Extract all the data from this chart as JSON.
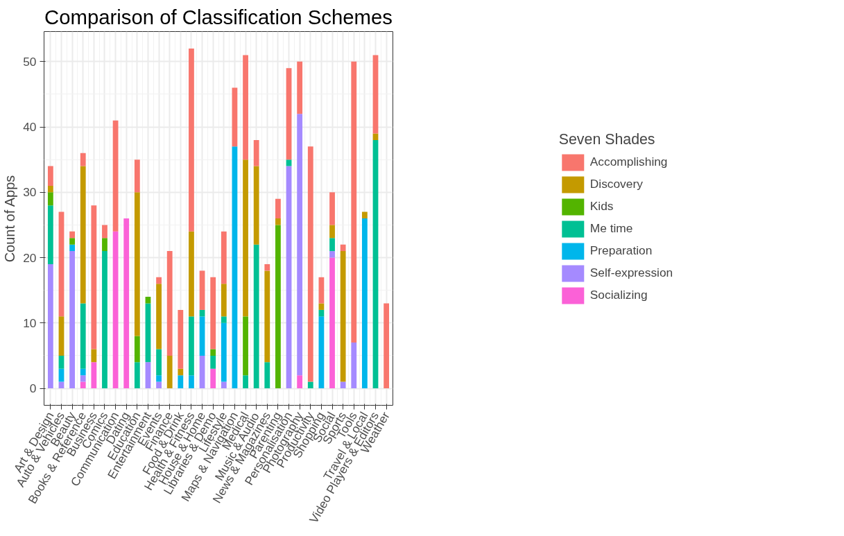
{
  "chart_data": {
    "type": "bar",
    "stacked": true,
    "title": "Comparison of Classification Schemes",
    "ylabel": "Count of Apps",
    "legend_title": "Seven Shades",
    "legend": "right",
    "grid": true,
    "categories": [
      "Art & Design",
      "Auto & Vehicles",
      "Beauty",
      "Books & Reference",
      "Business",
      "Comics",
      "Communication",
      "Dating",
      "Education",
      "Entertainment",
      "Events",
      "Finance",
      "Food & Drink",
      "Health & Fitness",
      "House & Home",
      "Libraries & Demo",
      "Lifestyle",
      "Maps & Navigation",
      "Medical",
      "Music & Audio",
      "News & Magazines",
      "Parenting",
      "Personalisation",
      "Photography",
      "Productivity",
      "Shopping",
      "Social",
      "Sports",
      "Tools",
      "Travel & Local",
      "Video Players & Editors",
      "Weather"
    ],
    "ylim": [
      -2.6,
      54.6
    ],
    "yticks": [
      0,
      10,
      20,
      30,
      40,
      50
    ],
    "series": [
      {
        "name": "Socializing",
        "color": "#fb61d7",
        "values": [
          null,
          null,
          null,
          1,
          4,
          null,
          24,
          26,
          null,
          null,
          null,
          null,
          null,
          null,
          null,
          3,
          null,
          null,
          null,
          null,
          null,
          null,
          null,
          2,
          null,
          null,
          20,
          null,
          null,
          null,
          null,
          null
        ]
      },
      {
        "name": "Self-expression",
        "color": "#a58aff",
        "values": [
          19,
          1,
          21,
          1,
          null,
          null,
          null,
          null,
          null,
          4,
          1,
          null,
          null,
          null,
          5,
          null,
          1,
          null,
          null,
          null,
          null,
          null,
          34,
          40,
          null,
          null,
          1,
          1,
          7,
          null,
          null,
          null
        ]
      },
      {
        "name": "Preparation",
        "color": "#00b6eb",
        "values": [
          null,
          2,
          1,
          1,
          null,
          null,
          null,
          null,
          null,
          null,
          1,
          null,
          2,
          2,
          6,
          null,
          9,
          37,
          null,
          null,
          null,
          null,
          null,
          null,
          null,
          11,
          null,
          null,
          null,
          26,
          null,
          null
        ]
      },
      {
        "name": "Me time",
        "color": "#00c094",
        "values": [
          9,
          2,
          null,
          10,
          null,
          21,
          null,
          null,
          4,
          9,
          4,
          null,
          null,
          9,
          1,
          2,
          1,
          null,
          2,
          22,
          4,
          null,
          1,
          null,
          1,
          1,
          2,
          null,
          null,
          null,
          38,
          null
        ]
      },
      {
        "name": "Kids",
        "color": "#53b400",
        "values": [
          2,
          null,
          1,
          null,
          null,
          2,
          null,
          null,
          4,
          1,
          null,
          null,
          null,
          null,
          null,
          1,
          null,
          null,
          9,
          null,
          null,
          25,
          null,
          null,
          null,
          null,
          null,
          null,
          null,
          null,
          null,
          null
        ]
      },
      {
        "name": "Discovery",
        "color": "#c49a00",
        "values": [
          1,
          6,
          null,
          21,
          2,
          null,
          null,
          null,
          22,
          null,
          10,
          5,
          1,
          13,
          null,
          null,
          5,
          null,
          24,
          12,
          14,
          1,
          null,
          null,
          null,
          1,
          2,
          20,
          null,
          1,
          1,
          null
        ]
      },
      {
        "name": "Accomplishing",
        "color": "#f8766d",
        "values": [
          3,
          16,
          1,
          2,
          22,
          2,
          17,
          null,
          5,
          null,
          1,
          16,
          9,
          28,
          6,
          11,
          8,
          9,
          16,
          4,
          1,
          3,
          14,
          8,
          36,
          4,
          5,
          1,
          43,
          null,
          12,
          13
        ]
      }
    ]
  }
}
